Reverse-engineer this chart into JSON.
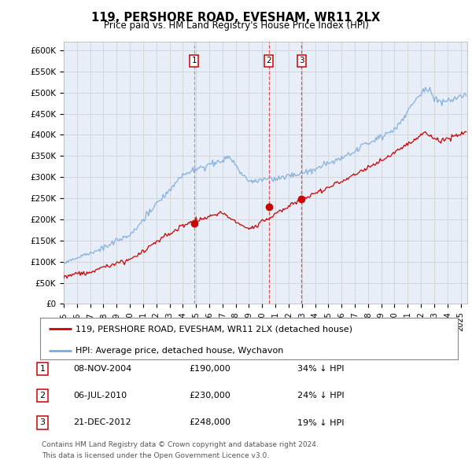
{
  "title": "119, PERSHORE ROAD, EVESHAM, WR11 2LX",
  "subtitle": "Price paid vs. HM Land Registry's House Price Index (HPI)",
  "ylabel_ticks": [
    "£0",
    "£50K",
    "£100K",
    "£150K",
    "£200K",
    "£250K",
    "£300K",
    "£350K",
    "£400K",
    "£450K",
    "£500K",
    "£550K",
    "£600K"
  ],
  "ytick_values": [
    0,
    50000,
    100000,
    150000,
    200000,
    250000,
    300000,
    350000,
    400000,
    450000,
    500000,
    550000,
    600000
  ],
  "xlim_start": 1995.0,
  "xlim_end": 2025.5,
  "ylim_min": 0,
  "ylim_max": 620000,
  "price_paid_color": "#cc0000",
  "hpi_color": "#7aaadd",
  "sale_marker_color": "#cc0000",
  "dashed_line_color_1": "#888888",
  "dashed_line_color_23": "#dd4444",
  "purchases": [
    {
      "num": 1,
      "date": "08-NOV-2004",
      "x": 2004.86,
      "price": 190000,
      "hpi_pct": "34% ↓ HPI",
      "vline_color": "#999999"
    },
    {
      "num": 2,
      "date": "06-JUL-2010",
      "x": 2010.51,
      "price": 230000,
      "hpi_pct": "24% ↓ HPI",
      "vline_color": "#dd4444"
    },
    {
      "num": 3,
      "date": "21-DEC-2012",
      "x": 2012.97,
      "price": 248000,
      "hpi_pct": "19% ↓ HPI",
      "vline_color": "#dd4444"
    }
  ],
  "legend_line1": "119, PERSHORE ROAD, EVESHAM, WR11 2LX (detached house)",
  "legend_line2": "HPI: Average price, detached house, Wychavon",
  "footer1": "Contains HM Land Registry data © Crown copyright and database right 2024.",
  "footer2": "This data is licensed under the Open Government Licence v3.0.",
  "background_color": "#ffffff",
  "plot_bg_color": "#e8eef8"
}
